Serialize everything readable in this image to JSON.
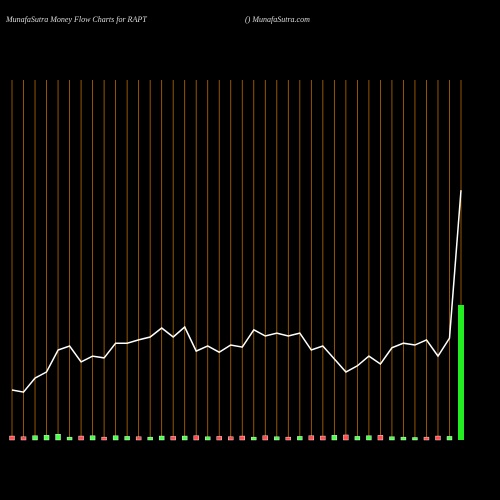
{
  "chart_data": {
    "type": "line",
    "title": "MunafaSutra  Money Flow  Charts for RAPT",
    "subtitle": "() MunafaSutra.com",
    "categories": [
      null,
      null,
      null,
      null,
      null,
      null,
      null,
      null,
      null,
      null,
      null,
      null,
      null,
      null,
      null,
      null,
      null,
      null,
      null,
      null,
      null,
      null,
      null,
      null,
      null,
      null,
      null,
      null,
      null,
      null,
      null,
      null,
      null,
      null,
      null,
      null,
      null,
      null,
      null,
      null
    ],
    "ylim": [
      0,
      100
    ],
    "grid_color": "#b86a00",
    "line": {
      "color": "#ffffff",
      "values": [
        13.9,
        13.3,
        17.2,
        18.9,
        25,
        26.1,
        21.7,
        23.3,
        22.8,
        26.9,
        26.9,
        27.8,
        28.6,
        31.1,
        28.6,
        31.4,
        24.7,
        26.1,
        24.4,
        26.4,
        25.8,
        30.6,
        28.9,
        29.7,
        28.9,
        29.7,
        25,
        26.1,
        22.5,
        18.9,
        20.6,
        23.3,
        21.1,
        25.6,
        26.9,
        26.4,
        27.8,
        23.3,
        28.3,
        69.4
      ]
    },
    "bars": {
      "values": [
        1.1,
        0.9,
        1.2,
        1.3,
        1.6,
        0.8,
        1.1,
        1.2,
        0.8,
        1.2,
        1.0,
        0.9,
        0.8,
        1.1,
        1.0,
        1.1,
        1.2,
        0.9,
        1.0,
        0.9,
        1.1,
        0.8,
        1.2,
        0.9,
        0.8,
        1.0,
        1.2,
        1.1,
        1.3,
        1.4,
        1.0,
        1.2,
        1.3,
        0.9,
        0.8,
        0.7,
        0.8,
        1.1,
        1.0,
        37.5
      ],
      "colors": [
        "#ff4d4d",
        "#ff4d4d",
        "#4dff4d",
        "#4dff4d",
        "#4dff4d",
        "#4dff4d",
        "#ff4d4d",
        "#4dff4d",
        "#ff4d4d",
        "#4dff4d",
        "#4dff4d",
        "#ff4d4d",
        "#4dff4d",
        "#4dff4d",
        "#ff4d4d",
        "#4dff4d",
        "#ff4d4d",
        "#4dff4d",
        "#ff4d4d",
        "#ff4d4d",
        "#ff4d4d",
        "#4dff4d",
        "#ff4d4d",
        "#4dff4d",
        "#ff4d4d",
        "#4dff4d",
        "#ff4d4d",
        "#ff4d4d",
        "#4dff4d",
        "#ff4d4d",
        "#4dff4d",
        "#4dff4d",
        "#ff4d4d",
        "#4dff4d",
        "#4dff4d",
        "#4dff4d",
        "#ff4d4d",
        "#ff4d4d",
        "#4dff4d",
        "#22ee22"
      ]
    }
  }
}
